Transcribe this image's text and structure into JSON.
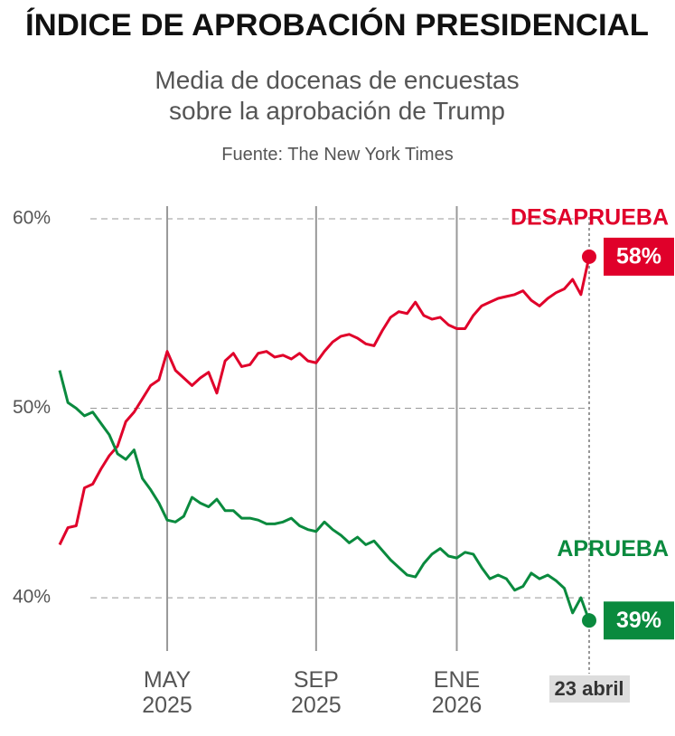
{
  "chart_data": {
    "type": "line",
    "title": "ÍNDICE DE APROBACIÓN PRESIDENCIAL",
    "subtitle": "Media de docenas de encuestas sobre la aprobación de Trump",
    "source": "Fuente: The New York Times",
    "categories": [
      null,
      null,
      null,
      null,
      null,
      null,
      null,
      null,
      null,
      null,
      null,
      null,
      null,
      "MAY 2025",
      null,
      null,
      null,
      null,
      null,
      null,
      null,
      null,
      null,
      null,
      null,
      null,
      null,
      null,
      null,
      null,
      null,
      "SEP 2025",
      null,
      null,
      null,
      null,
      null,
      null,
      null,
      null,
      null,
      null,
      null,
      null,
      null,
      null,
      null,
      null,
      "ENE 2026",
      null,
      null,
      null,
      null,
      null,
      null,
      null,
      null,
      null,
      null,
      null,
      null,
      null,
      null,
      null,
      "23 abril"
    ],
    "series": [
      {
        "name": "DESAPRUEBA",
        "color": "#e0002a",
        "values": [
          42.8,
          43.7,
          43.8,
          45.8,
          46.0,
          46.8,
          47.5,
          48.0,
          49.3,
          49.8,
          50.5,
          51.2,
          51.5,
          53.0,
          52.0,
          51.6,
          51.2,
          51.6,
          51.9,
          50.8,
          52.5,
          52.9,
          52.2,
          52.3,
          52.9,
          53.0,
          52.7,
          52.8,
          52.6,
          52.9,
          52.5,
          52.4,
          53.0,
          53.5,
          53.8,
          53.9,
          53.7,
          53.4,
          53.3,
          54.1,
          54.8,
          55.1,
          55.0,
          55.6,
          54.9,
          54.7,
          54.8,
          54.4,
          54.2,
          54.2,
          54.9,
          55.4,
          55.6,
          55.8,
          55.9,
          56.0,
          56.2,
          55.7,
          55.4,
          55.8,
          56.1,
          56.3,
          56.8,
          56.0,
          58
        ],
        "value_labels": [
          null,
          null,
          null,
          null,
          null,
          null,
          null,
          null,
          null,
          null,
          null,
          null,
          null,
          null,
          null,
          null,
          null,
          null,
          null,
          null,
          null,
          null,
          null,
          null,
          null,
          null,
          null,
          null,
          null,
          null,
          null,
          null,
          null,
          null,
          null,
          null,
          null,
          null,
          null,
          null,
          null,
          null,
          null,
          null,
          null,
          null,
          null,
          null,
          null,
          null,
          null,
          null,
          null,
          null,
          null,
          null,
          null,
          null,
          null,
          null,
          null,
          null,
          null,
          null,
          "58%"
        ]
      },
      {
        "name": "APRUEBA",
        "color": "#0a8a3e",
        "values": [
          52.0,
          50.3,
          50.0,
          49.6,
          49.8,
          49.2,
          48.6,
          47.6,
          47.3,
          47.8,
          46.3,
          45.7,
          45.0,
          44.1,
          44.0,
          44.3,
          45.3,
          45.0,
          44.8,
          45.2,
          44.6,
          44.6,
          44.2,
          44.2,
          44.1,
          43.9,
          43.9,
          44.0,
          44.2,
          43.8,
          43.6,
          43.5,
          44.0,
          43.6,
          43.3,
          42.9,
          43.2,
          42.8,
          43.0,
          42.5,
          42.0,
          41.6,
          41.2,
          41.1,
          41.8,
          42.3,
          42.6,
          42.2,
          42.1,
          42.4,
          42.3,
          41.6,
          41.0,
          41.2,
          41.0,
          40.4,
          40.6,
          41.3,
          41.0,
          41.2,
          40.9,
          40.5,
          39.2,
          40.0,
          38.8
        ],
        "value_labels": [
          null,
          null,
          null,
          null,
          null,
          null,
          null,
          null,
          null,
          null,
          null,
          null,
          null,
          null,
          null,
          null,
          null,
          null,
          null,
          null,
          null,
          null,
          null,
          null,
          null,
          null,
          null,
          null,
          null,
          null,
          null,
          null,
          null,
          null,
          null,
          null,
          null,
          null,
          null,
          null,
          null,
          null,
          null,
          null,
          null,
          null,
          null,
          null,
          null,
          null,
          null,
          null,
          null,
          null,
          null,
          null,
          null,
          null,
          null,
          null,
          null,
          null,
          null,
          null,
          "39%"
        ]
      }
    ],
    "ylim": [
      37,
      61
    ],
    "yticks": [
      {
        "value": 40,
        "label": "40%"
      },
      {
        "value": 50,
        "label": "50%"
      },
      {
        "value": 60,
        "label": "60%"
      }
    ],
    "grid": true
  }
}
